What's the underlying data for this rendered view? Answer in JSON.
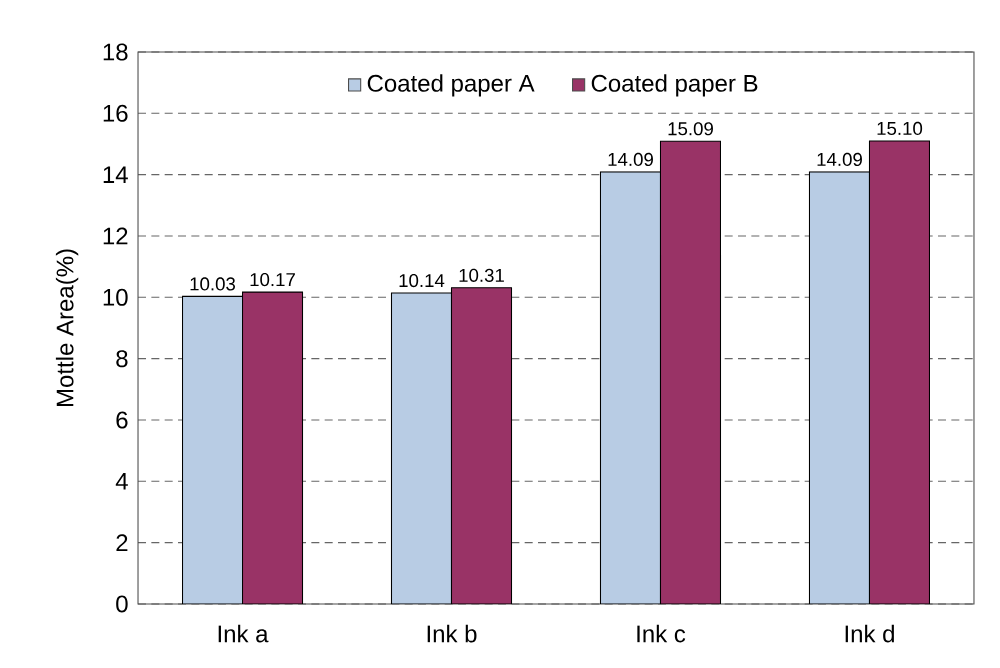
{
  "chart_data": {
    "type": "bar",
    "ylabel": "Mottle Area(%)",
    "categories": [
      "Ink a",
      "Ink b",
      "Ink c",
      "Ink d"
    ],
    "series": [
      {
        "name": "Coated paper A",
        "color": "#b8cce4",
        "values": [
          10.03,
          10.14,
          14.09,
          14.09
        ],
        "value_labels": [
          "10.03",
          "10.14",
          "14.09",
          "14.09"
        ]
      },
      {
        "name": "Coated paper B",
        "color": "#993366",
        "values": [
          10.17,
          10.31,
          15.09,
          15.1
        ],
        "value_labels": [
          "10.17",
          "10.31",
          "15.09",
          "15.10"
        ]
      }
    ],
    "ylim": [
      0,
      18
    ],
    "yticks": [
      0,
      2,
      4,
      6,
      8,
      10,
      12,
      14,
      16,
      18
    ],
    "grid": "y",
    "legend": "top"
  }
}
